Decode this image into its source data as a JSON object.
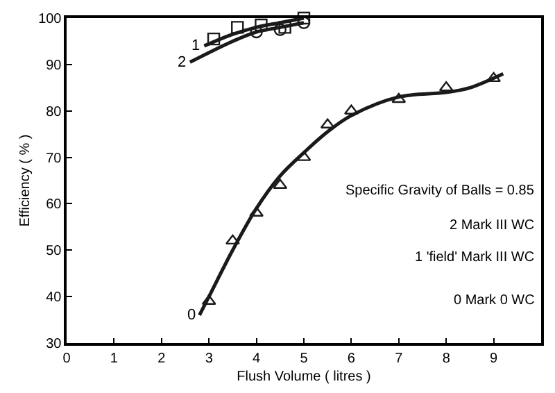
{
  "chart_data": {
    "type": "line",
    "xlabel": "Flush Volume ( litres )",
    "ylabel": "Efficiency ( % )",
    "xlim": [
      0,
      10
    ],
    "xticks": [
      0,
      1,
      2,
      3,
      4,
      5,
      6,
      7,
      8,
      9
    ],
    "ylim": [
      30,
      100
    ],
    "yticks": [
      30,
      40,
      50,
      60,
      70,
      80,
      90,
      100
    ],
    "series": [
      {
        "name": "0",
        "color": "#1a1a1a",
        "marker": "none",
        "x": [
          2.8,
          3,
          3.5,
          4,
          4.5,
          5,
          5.5,
          6,
          7,
          8,
          8.5,
          9.2
        ],
        "values": [
          36,
          40,
          50,
          59,
          66,
          71,
          75.5,
          79,
          83,
          84,
          85,
          88
        ]
      },
      {
        "type": "scatter",
        "color": "#1a1a1a",
        "marker": "triangle",
        "x": [
          3,
          3.5,
          4,
          4.5,
          5,
          5.5,
          6,
          7,
          8,
          9
        ],
        "values": [
          39,
          52,
          58,
          64,
          70,
          77,
          80,
          82.5,
          85,
          87
        ]
      },
      {
        "name": "1",
        "color": "#1a1a1a",
        "marker": "none",
        "x": [
          2.9,
          3.5,
          4,
          4.5,
          5
        ],
        "values": [
          94,
          96.5,
          98,
          99,
          100
        ]
      },
      {
        "type": "scatter",
        "color": "#1a1a1a",
        "marker": "square",
        "x": [
          3.1,
          3.6,
          4.1,
          4.6,
          5
        ],
        "values": [
          95.5,
          98,
          98.5,
          98,
          100
        ]
      },
      {
        "name": "2",
        "color": "#1a1a1a",
        "marker": "none",
        "x": [
          2.6,
          3.5,
          4,
          4.5,
          5
        ],
        "values": [
          90.5,
          95,
          97,
          98,
          99
        ]
      },
      {
        "type": "scatter",
        "color": "#1a1a1a",
        "marker": "circle",
        "x": [
          4,
          4.5,
          5
        ],
        "values": [
          97,
          97.5,
          99
        ]
      }
    ],
    "annotations": [
      "Specific Gravity of Balls = 0.85",
      "2 Mark III WC",
      "1 'field' Mark III WC",
      "0 Mark 0 WC"
    ]
  }
}
